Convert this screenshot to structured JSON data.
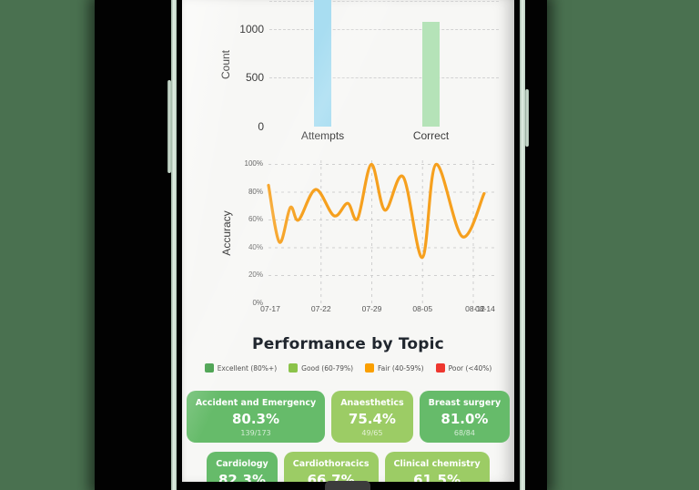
{
  "scene": {
    "device": "smartphone-mockup",
    "background_color": "#4a7150",
    "frame_color": "#d7e5da"
  },
  "app": {
    "section_title": "Performance by Topic",
    "legend": [
      {
        "label": "Excellent (80%+)",
        "color": "#3d9b43"
      },
      {
        "label": "Good (60-79%)",
        "color": "#8bc34a"
      },
      {
        "label": "Fair (40-59%)",
        "color": "#fa9f00"
      },
      {
        "label": "Poor (<40%)",
        "color": "#ee372f"
      }
    ],
    "topic_cards": [
      {
        "topic": "Accident and Emergency",
        "percent": "80.3%",
        "fraction": "139/173",
        "band": "excellent"
      },
      {
        "topic": "Anaesthetics",
        "percent": "75.4%",
        "fraction": "49/65",
        "band": "good"
      },
      {
        "topic": "Breast surgery",
        "percent": "81.0%",
        "fraction": "68/84",
        "band": "excellent"
      },
      {
        "topic": "Cardiology",
        "percent": "82.3%",
        "fraction": "",
        "band": "excellent"
      },
      {
        "topic": "Cardiothoracics",
        "percent": "66.7%",
        "fraction": "",
        "band": "good"
      },
      {
        "topic": "Clinical chemistry",
        "percent": "61.5%",
        "fraction": "",
        "band": "good"
      }
    ]
  },
  "chart_data": [
    {
      "type": "bar",
      "title": "",
      "ylabel": "Count",
      "categories": [
        "Attempts",
        "Correct"
      ],
      "values": [
        1300,
        1075
      ],
      "clipped_at_top": [
        true,
        false
      ],
      "value_note": "Attempts bar runs past the visible top edge of the screen (>=~1300); Correct ~1075 estimated from 500/1000 gridlines",
      "bar_colors": [
        "#a8ddf1",
        "#b5e3b8"
      ],
      "yticks": [
        0,
        500,
        1000
      ],
      "ytick_labels": [
        "1000",
        "500",
        "0"
      ],
      "ylim": [
        0,
        1300
      ],
      "grid": true,
      "legend_position": "none"
    },
    {
      "type": "line",
      "title": "",
      "ylabel": "Accuracy",
      "line_color": "#f6a01e",
      "ylim": [
        0,
        100
      ],
      "yticks_pct": [
        100,
        80,
        60,
        40,
        20,
        0
      ],
      "ytick_labels": [
        "100%",
        "80%",
        "60%",
        "40%",
        "20%",
        "0%"
      ],
      "xtick_labels": [
        "07-17",
        "07-22",
        "07-29",
        "08-05",
        "08-12",
        "08-14"
      ],
      "xtick_note": "last two x labels overlap each other in the screenshot",
      "grid": true,
      "points": [
        {
          "x": "07-17",
          "x_frac": 0.0,
          "pct": 85
        },
        {
          "x": "07-18",
          "x_frac": 0.049,
          "pct": 44
        },
        {
          "x": "07-19",
          "x_frac": 0.098,
          "pct": 69
        },
        {
          "x": "07-20",
          "x_frac": 0.135,
          "pct": 60
        },
        {
          "x": "07-22",
          "x_frac": 0.212,
          "pct": 82
        },
        {
          "x": "07-24",
          "x_frac": 0.294,
          "pct": 63
        },
        {
          "x": "07-26",
          "x_frac": 0.355,
          "pct": 72
        },
        {
          "x": "07-27",
          "x_frac": 0.4,
          "pct": 61
        },
        {
          "x": "07-29",
          "x_frac": 0.461,
          "pct": 100
        },
        {
          "x": "07-31",
          "x_frac": 0.522,
          "pct": 67
        },
        {
          "x": "08-02",
          "x_frac": 0.604,
          "pct": 91
        },
        {
          "x": "08-05",
          "x_frac": 0.69,
          "pct": 33
        },
        {
          "x": "08-07",
          "x_frac": 0.751,
          "pct": 100
        },
        {
          "x": "08-10",
          "x_frac": 0.869,
          "pct": 48
        },
        {
          "x": "08-13",
          "x_frac": 0.967,
          "pct": 79
        }
      ]
    }
  ]
}
